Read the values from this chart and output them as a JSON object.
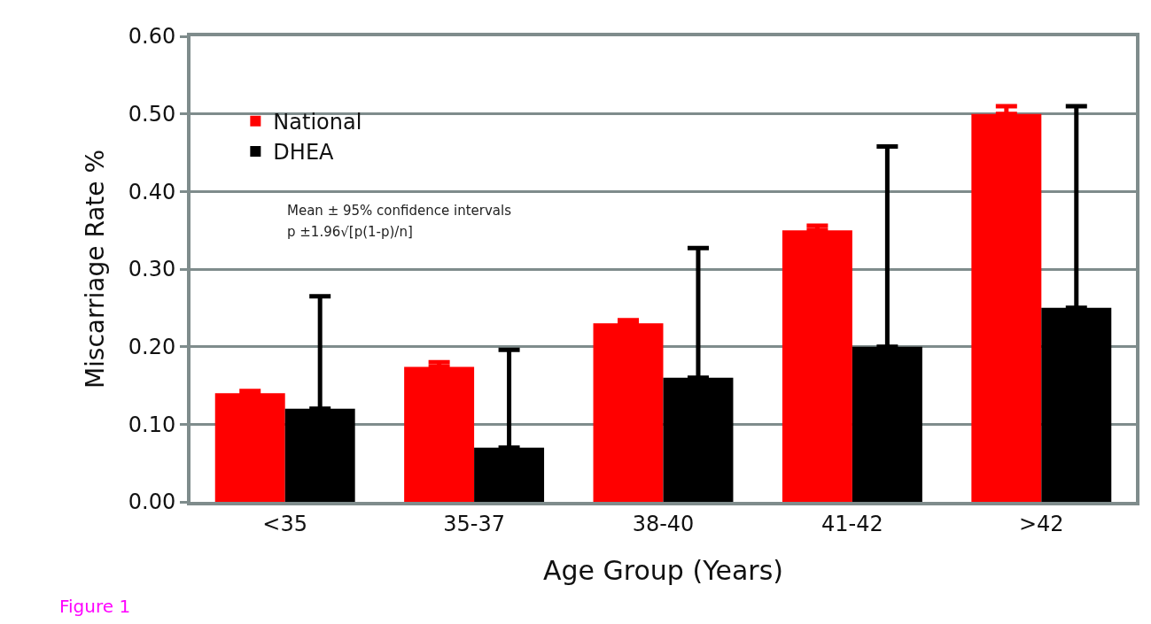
{
  "chart_data": {
    "type": "bar",
    "categories": [
      "<35",
      "35-37",
      "38-40",
      "41-42",
      ">42"
    ],
    "series": [
      {
        "name": "National",
        "color": "#ff0000",
        "values": [
          0.14,
          0.174,
          0.23,
          0.35,
          0.5
        ],
        "errors": [
          [
            0.14,
            0.143
          ],
          [
            0.174,
            0.18
          ],
          [
            0.23,
            0.234
          ],
          [
            0.35,
            0.356
          ],
          [
            0.5,
            0.51
          ]
        ]
      },
      {
        "name": "DHEA",
        "color": "#000000",
        "values": [
          0.12,
          0.07,
          0.16,
          0.2,
          0.25
        ],
        "errors": [
          [
            0.12,
            0.265
          ],
          [
            0.07,
            0.196
          ],
          [
            0.16,
            0.327
          ],
          [
            0.2,
            0.458
          ],
          [
            0.25,
            0.51
          ]
        ]
      }
    ],
    "xlabel": "Age Group (Years)",
    "ylabel": "Miscarriage Rate %",
    "ylim": [
      0,
      0.6
    ],
    "yticks": [
      {
        "value": 0,
        "label": "0.00"
      },
      {
        "value": 0.1,
        "label": "0.10"
      },
      {
        "value": 0.2,
        "label": "0.20"
      },
      {
        "value": 0.3,
        "label": "0.30"
      },
      {
        "value": 0.4,
        "label": "0.40"
      },
      {
        "value": 0.5,
        "label": "0.50"
      },
      {
        "value": 0.6,
        "label": "0.60"
      }
    ],
    "grid": "y",
    "legend": "top left",
    "annotations": [
      "Mean ± 95% confidence intervals",
      "p ±1.96√[p(1-p)/n]",
      "Figure 1"
    ]
  }
}
